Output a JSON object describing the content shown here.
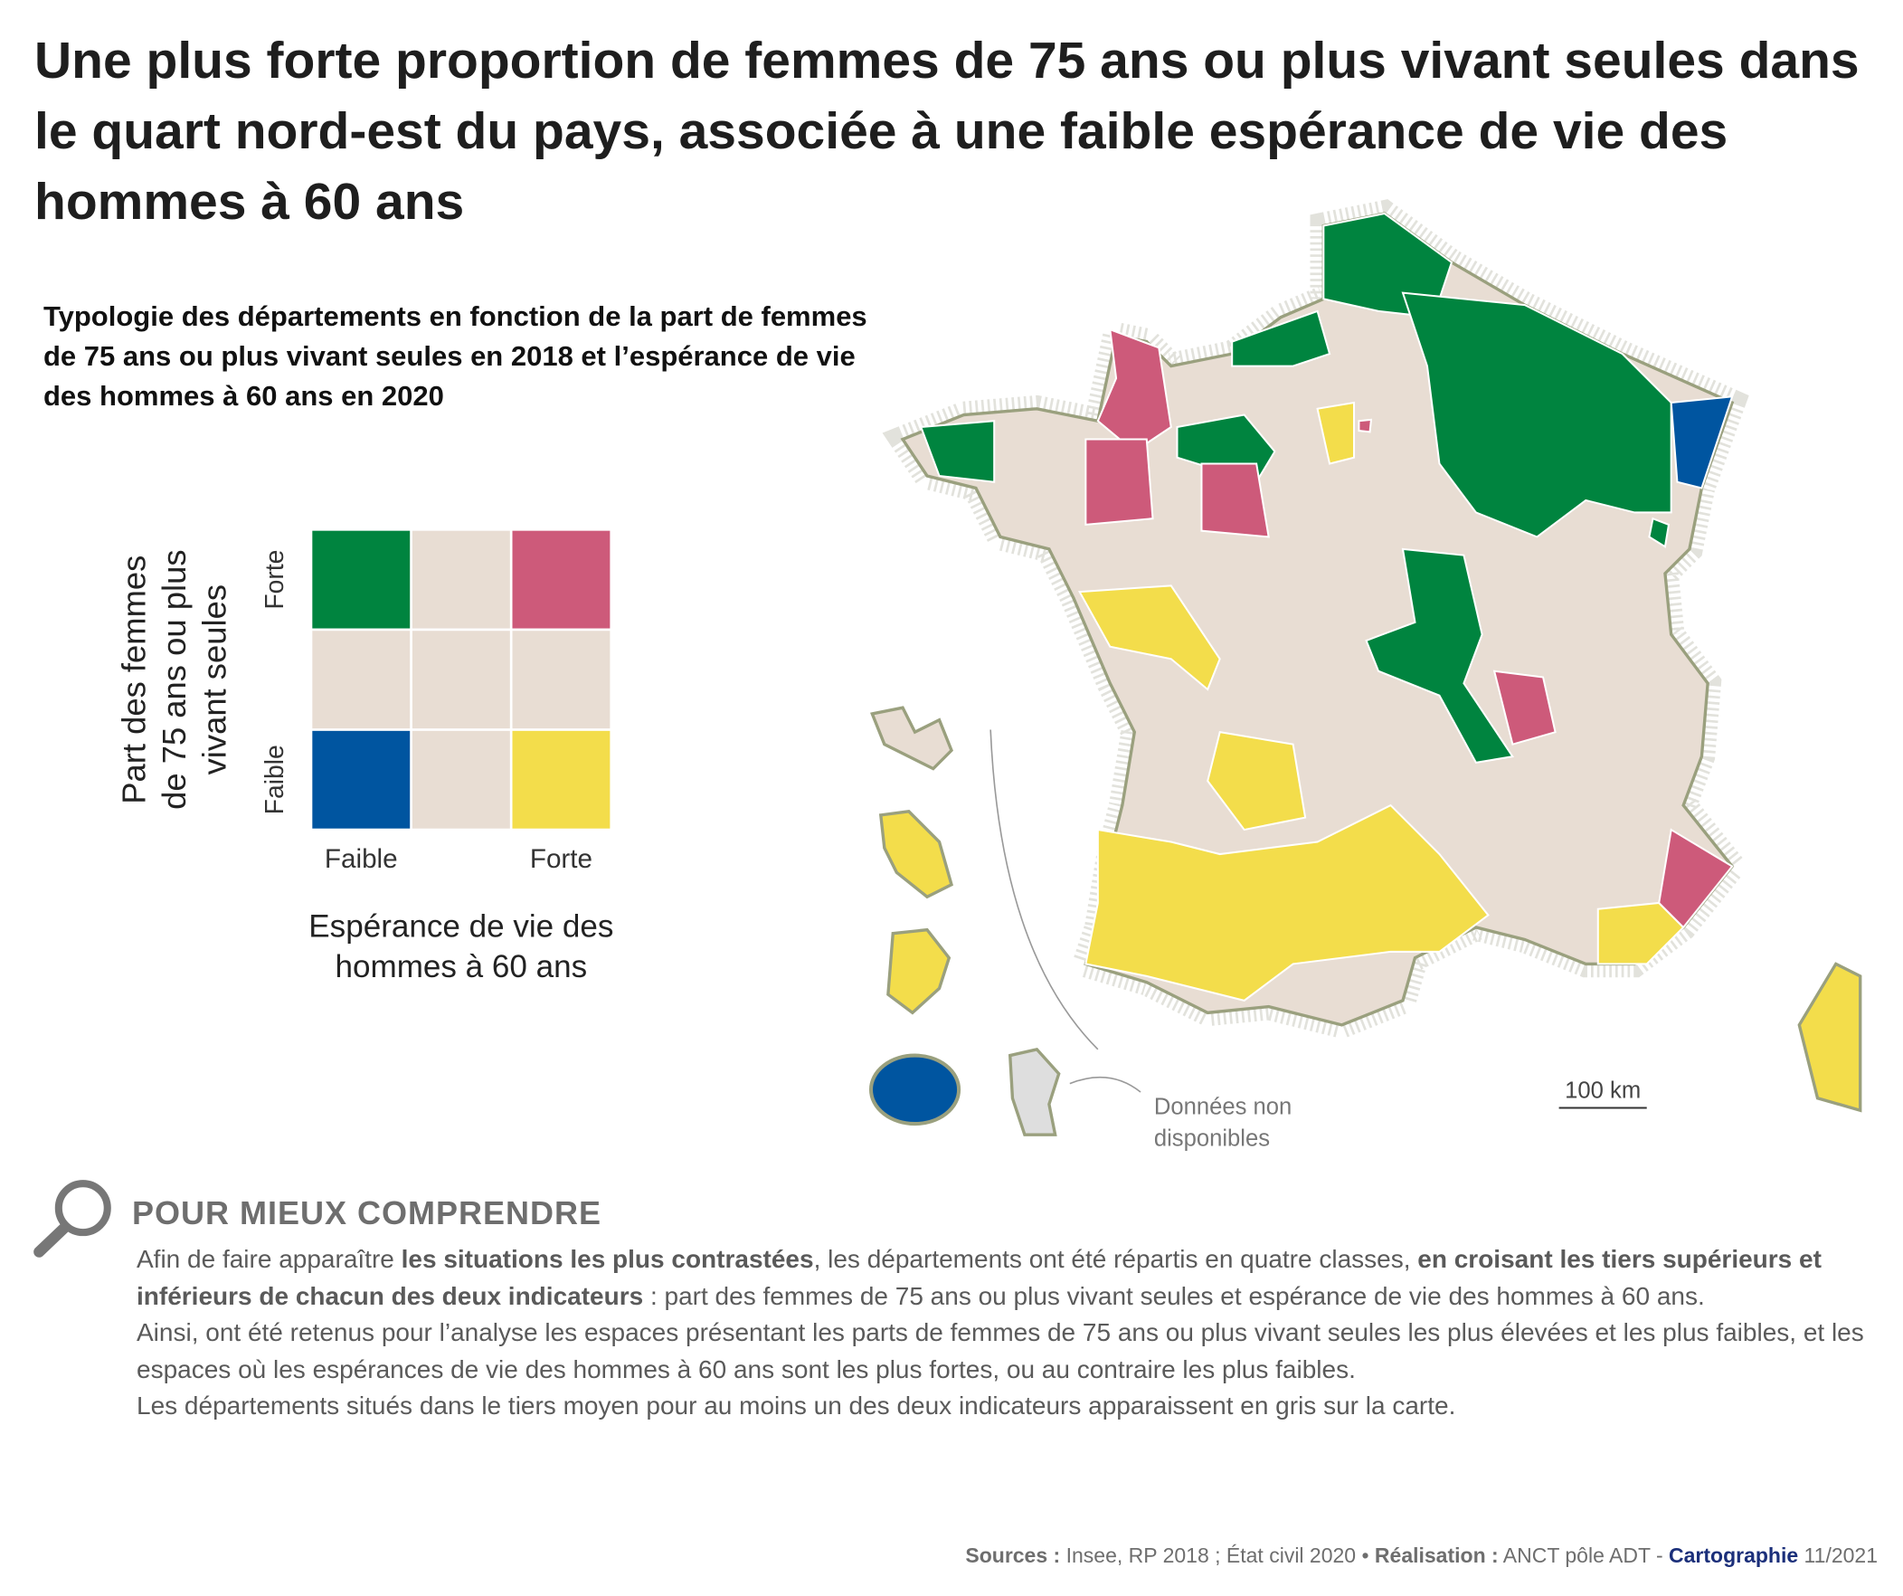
{
  "title": "Une plus forte proportion de femmes de 75 ans ou plus vivant seules dans le quart nord-est du pays, associée à une faible espérance de vie des hommes à 60 ans",
  "subtitle": "Typologie des départements en fonction de la part de femmes de 75 ans ou plus vivant seules en 2018 et l’espérance de vie des hommes à 60 ans en 2020",
  "legend": {
    "y_title": [
      "Part des femmes",
      "de 75 ans ou plus",
      "vivant seules"
    ],
    "y_labels": [
      "Forte",
      "Faible"
    ],
    "x_labels": [
      "Faible",
      "Forte"
    ],
    "x_title": [
      "Espérance de vie des",
      "hommes à 60 ans"
    ],
    "cells": [
      [
        "#00843f",
        "#e8ddd3",
        "#cd5a7a"
      ],
      [
        "#e8ddd3",
        "#e8ddd3",
        "#e8ddd3"
      ],
      [
        "#0055a0",
        "#e8ddd3",
        "#f3dd4b"
      ]
    ]
  },
  "map": {
    "scale_label": "100 km",
    "no_data_label": [
      "Données non",
      "disponibles"
    ]
  },
  "explainer": {
    "heading": "POUR MIEUX COMPRENDRE",
    "paragraphs": [
      [
        {
          "text": "Afin de faire apparaître "
        },
        {
          "text": "les situations les plus contrastées",
          "bold": true
        },
        {
          "text": ", les départements ont été répartis en quatre classes, "
        },
        {
          "text": "en croisant les tiers supérieurs et inférieurs de chacun des deux indicateurs",
          "bold": true
        },
        {
          "text": " : part des femmes de 75 ans ou plus vivant seules et espérance de vie des hommes à 60 ans."
        }
      ],
      [
        {
          "text": "Ainsi, ont été retenus pour l’analyse les espaces présentant les parts de femmes de 75 ans ou plus vivant seules les plus élevées et les plus faibles, et les espaces où les espérances de vie des hommes à 60 ans sont les plus fortes, ou au contraire les plus faibles."
        }
      ],
      [
        {
          "text": "Les départements situés dans le tiers moyen pour au moins un des deux indicateurs apparaissent en gris sur la carte."
        }
      ]
    ]
  },
  "sources": [
    {
      "text": "Sources :",
      "bold": true
    },
    {
      "text": " Insee, RP 2018 ; État civil 2020 • "
    },
    {
      "text": "Réalisation :",
      "bold": true
    },
    {
      "text": " ANCT pôle ADT - "
    },
    {
      "text": "Cartographie",
      "bold": true,
      "color": "#1b2f7a"
    },
    {
      "text": " 11/2021"
    }
  ]
}
